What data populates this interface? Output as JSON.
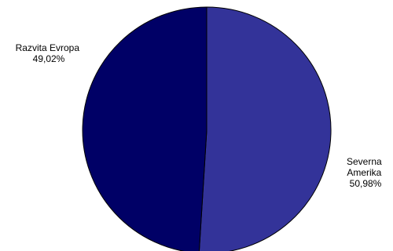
{
  "chart_data": {
    "type": "pie",
    "title": "",
    "slices": [
      {
        "label_lines": [
          "Severna",
          "Amerika"
        ],
        "value": 50.98,
        "value_label": "50,98%",
        "color": "#333399"
      },
      {
        "label_lines": [
          "Razvita Evropa"
        ],
        "value": 49.02,
        "value_label": "49,02%",
        "color": "#000066"
      }
    ],
    "start_angle": "12 o'clock",
    "direction": "clockwise",
    "slice_border_color": "#000000",
    "legend": "none"
  }
}
